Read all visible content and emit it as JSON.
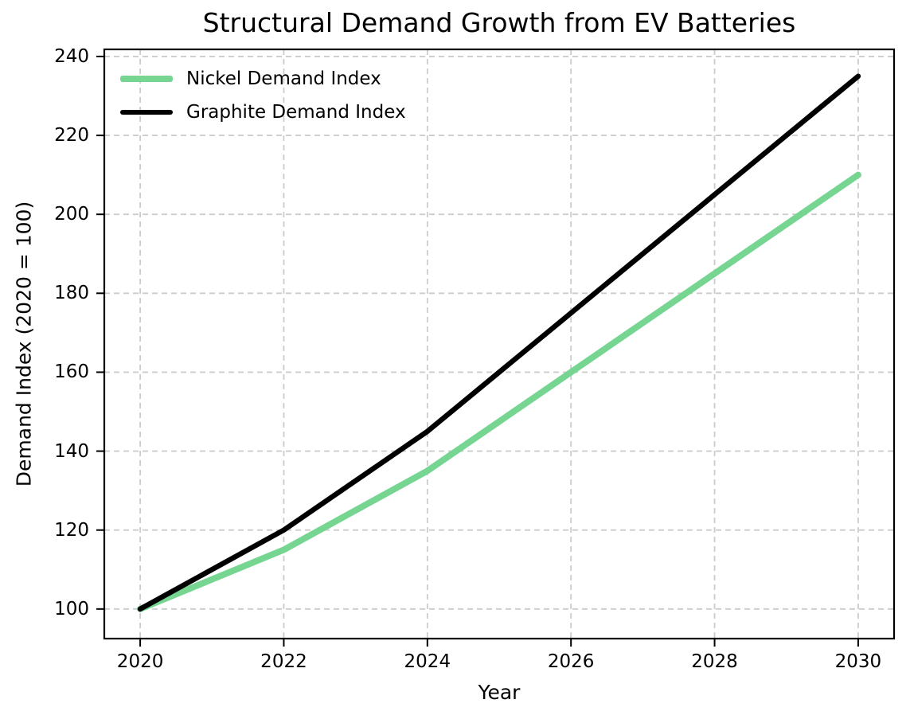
{
  "chart_data": {
    "type": "line",
    "title": "Structural Demand Growth from EV Batteries",
    "xlabel": "Year",
    "ylabel": "Demand Index (2020 = 100)",
    "x": [
      2020,
      2022,
      2024,
      2026,
      2028,
      2030
    ],
    "series": [
      {
        "name": "Nickel Demand Index",
        "color": "#76d691",
        "linewidth": 8,
        "values": [
          100,
          115,
          135,
          160,
          185,
          210
        ]
      },
      {
        "name": "Graphite Demand Index",
        "color": "#000000",
        "linewidth": 6.5,
        "values": [
          100,
          120,
          145,
          175,
          205,
          235
        ]
      }
    ],
    "x_ticks": [
      2020,
      2022,
      2024,
      2026,
      2028,
      2030
    ],
    "y_ticks": [
      100,
      120,
      140,
      160,
      180,
      200,
      220,
      240
    ],
    "xlim": [
      2019.5,
      2030.5
    ],
    "ylim": [
      92.5,
      241.8
    ],
    "grid": true,
    "grid_style": "dashed",
    "grid_color": "#cccccc",
    "legend_position": "upper-left",
    "spine_color": "#000000"
  }
}
